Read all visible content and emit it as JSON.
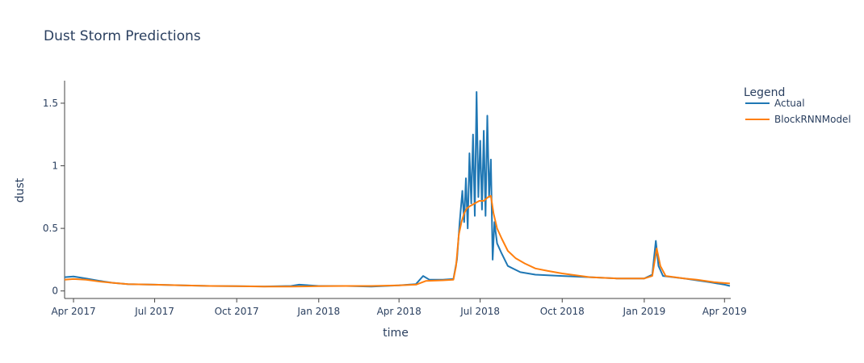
{
  "chart_data": {
    "type": "line",
    "title": "Dust Storm Predictions",
    "xlabel": "time",
    "ylabel": "dust",
    "x_range": [
      "2017-03-22",
      "2019-04-08"
    ],
    "ylim": [
      -0.06,
      1.68
    ],
    "x_ticks": [
      {
        "label": "Apr 2017",
        "date": "2017-04-01"
      },
      {
        "label": "Jul 2017",
        "date": "2017-07-01"
      },
      {
        "label": "Oct 2017",
        "date": "2017-10-01"
      },
      {
        "label": "Jan 2018",
        "date": "2018-01-01"
      },
      {
        "label": "Apr 2018",
        "date": "2018-04-01"
      },
      {
        "label": "Jul 2018",
        "date": "2018-07-01"
      },
      {
        "label": "Oct 2018",
        "date": "2018-10-01"
      },
      {
        "label": "Jan 2019",
        "date": "2019-01-01"
      },
      {
        "label": "Apr 2019",
        "date": "2019-04-01"
      }
    ],
    "y_ticks": [
      {
        "label": "0",
        "value": 0
      },
      {
        "label": "0.5",
        "value": 0.5
      },
      {
        "label": "1",
        "value": 1
      },
      {
        "label": "1.5",
        "value": 1.5
      }
    ],
    "grid": false,
    "legend": {
      "title": "Legend",
      "position": "right"
    },
    "series": [
      {
        "name": "Actual",
        "color": "#1f77b4",
        "points": [
          [
            "2017-03-22",
            0.11
          ],
          [
            "2017-04-01",
            0.115
          ],
          [
            "2017-04-15",
            0.1
          ],
          [
            "2017-05-01",
            0.08
          ],
          [
            "2017-05-15",
            0.065
          ],
          [
            "2017-06-01",
            0.055
          ],
          [
            "2017-07-01",
            0.05
          ],
          [
            "2017-08-01",
            0.045
          ],
          [
            "2017-09-01",
            0.04
          ],
          [
            "2017-10-01",
            0.038
          ],
          [
            "2017-11-01",
            0.036
          ],
          [
            "2017-12-01",
            0.04
          ],
          [
            "2017-12-10",
            0.05
          ],
          [
            "2018-01-01",
            0.04
          ],
          [
            "2018-02-01",
            0.04
          ],
          [
            "2018-03-01",
            0.035
          ],
          [
            "2018-04-01",
            0.045
          ],
          [
            "2018-04-20",
            0.055
          ],
          [
            "2018-04-28",
            0.12
          ],
          [
            "2018-05-05",
            0.09
          ],
          [
            "2018-05-20",
            0.09
          ],
          [
            "2018-06-01",
            0.095
          ],
          [
            "2018-06-05",
            0.25
          ],
          [
            "2018-06-08",
            0.55
          ],
          [
            "2018-06-11",
            0.8
          ],
          [
            "2018-06-13",
            0.55
          ],
          [
            "2018-06-15",
            0.9
          ],
          [
            "2018-06-17",
            0.5
          ],
          [
            "2018-06-19",
            1.1
          ],
          [
            "2018-06-21",
            0.7
          ],
          [
            "2018-06-23",
            1.25
          ],
          [
            "2018-06-25",
            0.6
          ],
          [
            "2018-06-27",
            1.59
          ],
          [
            "2018-06-29",
            0.75
          ],
          [
            "2018-07-01",
            1.2
          ],
          [
            "2018-07-03",
            0.65
          ],
          [
            "2018-07-05",
            1.28
          ],
          [
            "2018-07-07",
            0.6
          ],
          [
            "2018-07-09",
            1.4
          ],
          [
            "2018-07-11",
            0.75
          ],
          [
            "2018-07-13",
            1.05
          ],
          [
            "2018-07-15",
            0.25
          ],
          [
            "2018-07-17",
            0.55
          ],
          [
            "2018-07-20",
            0.38
          ],
          [
            "2018-07-25",
            0.3
          ],
          [
            "2018-08-01",
            0.2
          ],
          [
            "2018-08-15",
            0.15
          ],
          [
            "2018-09-01",
            0.13
          ],
          [
            "2018-10-01",
            0.12
          ],
          [
            "2018-11-01",
            0.11
          ],
          [
            "2018-12-01",
            0.1
          ],
          [
            "2019-01-01",
            0.1
          ],
          [
            "2019-01-10",
            0.13
          ],
          [
            "2019-01-14",
            0.4
          ],
          [
            "2019-01-17",
            0.2
          ],
          [
            "2019-01-22",
            0.12
          ],
          [
            "2019-02-15",
            0.1
          ],
          [
            "2019-03-01",
            0.085
          ],
          [
            "2019-03-15",
            0.07
          ],
          [
            "2019-04-01",
            0.05
          ],
          [
            "2019-04-07",
            0.04
          ]
        ]
      },
      {
        "name": "BlockRNNModel",
        "color": "#ff7f0e",
        "points": [
          [
            "2017-03-22",
            0.09
          ],
          [
            "2017-04-01",
            0.095
          ],
          [
            "2017-04-15",
            0.09
          ],
          [
            "2017-05-01",
            0.075
          ],
          [
            "2017-05-15",
            0.065
          ],
          [
            "2017-06-01",
            0.055
          ],
          [
            "2017-07-01",
            0.05
          ],
          [
            "2017-08-01",
            0.045
          ],
          [
            "2017-09-01",
            0.04
          ],
          [
            "2017-10-01",
            0.038
          ],
          [
            "2017-11-01",
            0.035
          ],
          [
            "2017-12-01",
            0.035
          ],
          [
            "2018-01-01",
            0.038
          ],
          [
            "2018-02-01",
            0.04
          ],
          [
            "2018-03-01",
            0.04
          ],
          [
            "2018-04-01",
            0.045
          ],
          [
            "2018-04-20",
            0.05
          ],
          [
            "2018-05-01",
            0.08
          ],
          [
            "2018-05-20",
            0.085
          ],
          [
            "2018-06-01",
            0.09
          ],
          [
            "2018-06-04",
            0.2
          ],
          [
            "2018-06-07",
            0.45
          ],
          [
            "2018-06-10",
            0.55
          ],
          [
            "2018-06-13",
            0.62
          ],
          [
            "2018-06-16",
            0.66
          ],
          [
            "2018-06-20",
            0.68
          ],
          [
            "2018-06-25",
            0.7
          ],
          [
            "2018-06-30",
            0.72
          ],
          [
            "2018-07-05",
            0.72
          ],
          [
            "2018-07-10",
            0.75
          ],
          [
            "2018-07-13",
            0.76
          ],
          [
            "2018-07-16",
            0.62
          ],
          [
            "2018-07-20",
            0.5
          ],
          [
            "2018-07-25",
            0.42
          ],
          [
            "2018-08-01",
            0.32
          ],
          [
            "2018-08-10",
            0.26
          ],
          [
            "2018-08-20",
            0.22
          ],
          [
            "2018-09-01",
            0.18
          ],
          [
            "2018-09-15",
            0.16
          ],
          [
            "2018-10-01",
            0.14
          ],
          [
            "2018-11-01",
            0.11
          ],
          [
            "2018-12-01",
            0.1
          ],
          [
            "2019-01-01",
            0.1
          ],
          [
            "2019-01-10",
            0.12
          ],
          [
            "2019-01-15",
            0.34
          ],
          [
            "2019-01-19",
            0.2
          ],
          [
            "2019-01-25",
            0.12
          ],
          [
            "2019-02-15",
            0.1
          ],
          [
            "2019-03-01",
            0.09
          ],
          [
            "2019-03-20",
            0.07
          ],
          [
            "2019-04-07",
            0.06
          ]
        ]
      }
    ]
  }
}
